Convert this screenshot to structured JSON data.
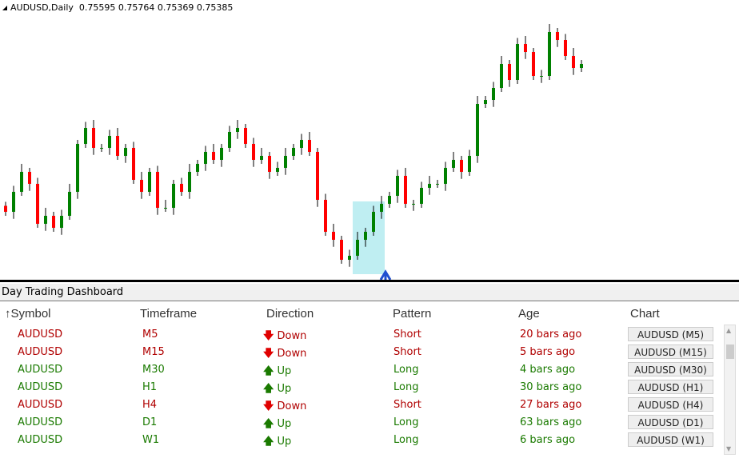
{
  "chart_header": {
    "symbol_period": "AUDUSD,Daily",
    "ohlc": "0.75595 0.75764 0.75369 0.75385"
  },
  "chart_data": {
    "type": "candlestick",
    "ylim": [
      0.69,
      0.82
    ],
    "up_color": "#008000",
    "down_color": "#ff0000",
    "closes": [
      0.722,
      0.732,
      0.742,
      0.736,
      0.716,
      0.72,
      0.714,
      0.72,
      0.732,
      0.756,
      0.764,
      0.754,
      0.754,
      0.76,
      0.75,
      0.754,
      0.738,
      0.732,
      0.742,
      0.724,
      0.724,
      0.736,
      0.732,
      0.742,
      0.746,
      0.752,
      0.748,
      0.754,
      0.762,
      0.764,
      0.756,
      0.748,
      0.75,
      0.742,
      0.744,
      0.75,
      0.754,
      0.758,
      0.752,
      0.728,
      0.712,
      0.708,
      0.698,
      0.7,
      0.708,
      0.712,
      0.722,
      0.726,
      0.73,
      0.74,
      0.726,
      0.726,
      0.734,
      0.736,
      0.736,
      0.744,
      0.748,
      0.742,
      0.75,
      0.776,
      0.778,
      0.784,
      0.796,
      0.788,
      0.806,
      0.802,
      0.79,
      0.79,
      0.812,
      0.808,
      0.8,
      0.794,
      0.796
    ]
  },
  "panel": {
    "title": "Day Trading Dashboard"
  },
  "columns": {
    "sort_icon": "↑",
    "symbol": "Symbol",
    "timeframe": "Timeframe",
    "direction": "Direction",
    "pattern": "Pattern",
    "age": "Age",
    "chart": "Chart"
  },
  "rows": [
    {
      "symbol": "AUDUSD",
      "tf": "M5",
      "dir": "Down",
      "arrow": "🡇",
      "pattern": "Short",
      "age": "20 bars ago",
      "button": "AUDUSD (M5)",
      "color": "red"
    },
    {
      "symbol": "AUDUSD",
      "tf": "M15",
      "dir": "Down",
      "arrow": "🡇",
      "pattern": "Short",
      "age": "5 bars ago",
      "button": "AUDUSD (M15)",
      "color": "red"
    },
    {
      "symbol": "AUDUSD",
      "tf": "M30",
      "dir": "Up",
      "arrow": "🡅",
      "pattern": "Long",
      "age": "4 bars ago",
      "button": "AUDUSD (M30)",
      "color": "green"
    },
    {
      "symbol": "AUDUSD",
      "tf": "H1",
      "dir": "Up",
      "arrow": "🡅",
      "pattern": "Long",
      "age": "30 bars ago",
      "button": "AUDUSD (H1)",
      "color": "green"
    },
    {
      "symbol": "AUDUSD",
      "tf": "H4",
      "dir": "Down",
      "arrow": "🡇",
      "pattern": "Short",
      "age": "27 bars ago",
      "button": "AUDUSD (H4)",
      "color": "red"
    },
    {
      "symbol": "AUDUSD",
      "tf": "D1",
      "dir": "Up",
      "arrow": "🡅",
      "pattern": "Long",
      "age": "63 bars ago",
      "button": "AUDUSD (D1)",
      "color": "green"
    },
    {
      "symbol": "AUDUSD",
      "tf": "W1",
      "dir": "Up",
      "arrow": "🡅",
      "pattern": "Long",
      "age": "6 bars ago",
      "button": "AUDUSD (W1)",
      "color": "green"
    }
  ]
}
